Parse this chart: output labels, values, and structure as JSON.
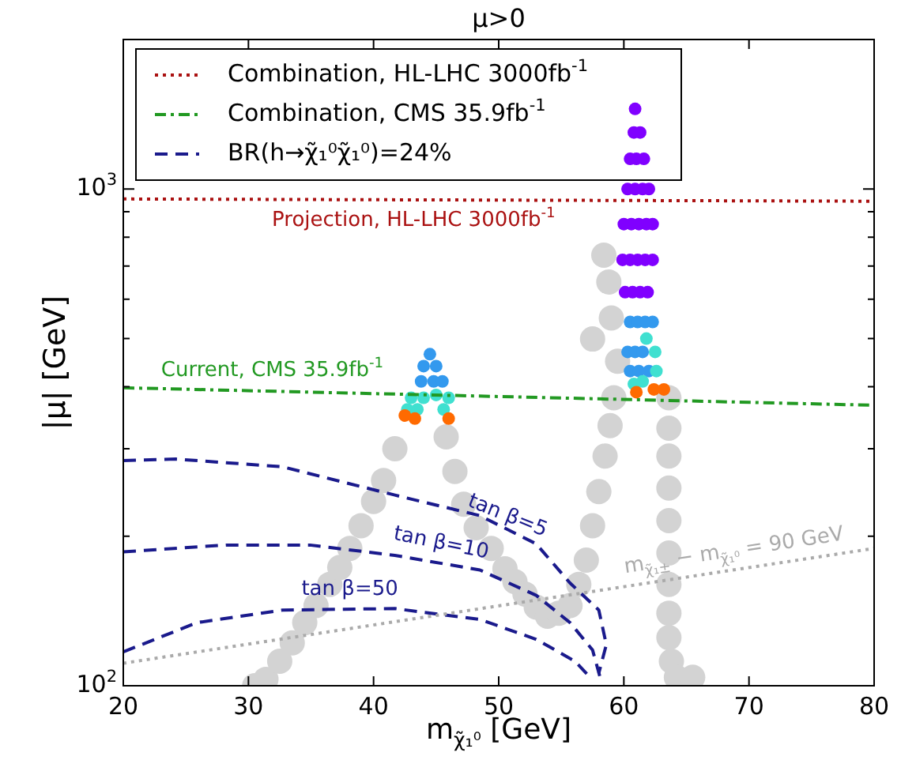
{
  "chart_data": {
    "type": "scatter",
    "title": "μ>0",
    "xlabel": "m$_{χ̃₁⁰}$ [GeV]",
    "ylabel": "|μ| [GeV]",
    "log": "y",
    "xlim": [
      20,
      80
    ],
    "ylim": [
      100,
      2000
    ],
    "xticks": [
      20,
      30,
      40,
      50,
      60,
      70,
      80
    ],
    "yticks": [
      {
        "value": 100,
        "label": "10$^{2}$"
      },
      {
        "value": 200,
        "label": null
      },
      {
        "value": 300,
        "label": null
      },
      {
        "value": 400,
        "label": null
      },
      {
        "value": 500,
        "label": null
      },
      {
        "value": 600,
        "label": null
      },
      {
        "value": 700,
        "label": null
      },
      {
        "value": 800,
        "label": null
      },
      {
        "value": 900,
        "label": null
      },
      {
        "value": 1000,
        "label": "10$^{3}$"
      }
    ],
    "grid": false,
    "legend": "top left",
    "annotations": [
      {
        "text": "Projection, HL-LHC 3000fb$^{-1}$",
        "x": 43.2,
        "y": 950
      },
      {
        "text": "Current, CMS 35.9fb$^{-1}$",
        "x": 31.9,
        "y": 392
      },
      {
        "text": "tan β=5",
        "x": 50.7,
        "y": 207
      },
      {
        "text": "tan β=10",
        "x": 45.4,
        "y": 177
      },
      {
        "text": "tan β=50",
        "x": 38.1,
        "y": 143
      },
      {
        "text": "m$_{χ̃₁±}$ − m$_{χ̃₁⁰}$ = 90 GeV",
        "x": 68.8,
        "y": 171
      }
    ],
    "series": [
      {
        "color": "#d3d3d3",
        "marker": "circle",
        "x": [
          30.5,
          31.4,
          32.5,
          33.5,
          34.5,
          35.4,
          36.5,
          37.3,
          38.1,
          39,
          40,
          40.8,
          41.7,
          45.8,
          46.5,
          47.2,
          48.2,
          49.4,
          50.5,
          51.3,
          52.1,
          53,
          53.9,
          54.8,
          55.7,
          56.4,
          57,
          57.5,
          58,
          58.5,
          58.9,
          59.2,
          59.5,
          59,
          58.8,
          58.4,
          57.5,
          63.6,
          63.6,
          63.6,
          63.6,
          63.6,
          63.6,
          63.6,
          63.6,
          63.6,
          63.8,
          64.2,
          65.5
        ],
        "values": [
          100,
          103,
          112,
          122,
          134,
          145,
          160,
          173,
          189,
          210,
          235,
          259,
          300,
          317,
          270,
          232,
          208,
          189,
          172,
          162,
          153,
          144,
          138,
          140,
          145,
          160,
          179,
          210,
          246,
          290,
          334,
          380,
          450,
          550,
          650,
          736,
          499,
          380,
          330,
          290,
          250,
          215,
          185,
          160,
          140,
          125,
          112,
          104,
          104
        ]
      },
      {
        "color": "#8000ff",
        "marker": "circle",
        "x": [
          60.9,
          60.8,
          61.3,
          60.5,
          61,
          61.6,
          60.3,
          60.9,
          61.5,
          62,
          60,
          60.6,
          61.2,
          61.8,
          62.3,
          59.9,
          60.5,
          61.1,
          61.7,
          62.3,
          60.1,
          60.7,
          61.3,
          61.9
        ],
        "values": [
          1450,
          1300,
          1300,
          1150,
          1150,
          1150,
          1000,
          1000,
          1000,
          1000,
          850,
          850,
          850,
          850,
          850,
          720,
          720,
          720,
          720,
          720,
          620,
          620,
          620,
          620
        ]
      },
      {
        "color": "#3399ee",
        "marker": "circle",
        "x": [
          60.5,
          61.1,
          61.7,
          62.3,
          60.3,
          60.9,
          61.5,
          60.5,
          61.2,
          62,
          44.5,
          44,
          45,
          43.8,
          44.8,
          45.5
        ],
        "values": [
          540,
          540,
          540,
          540,
          470,
          470,
          470,
          430,
          430,
          430,
          465,
          440,
          440,
          410,
          410,
          410
        ]
      },
      {
        "color": "#40e0d0",
        "marker": "circle",
        "x": [
          61.8,
          62.5,
          62.6,
          61.5,
          60.8,
          43,
          44,
          45,
          46,
          42.7,
          43.5,
          45.6
        ],
        "values": [
          500,
          470,
          430,
          410,
          405,
          380,
          380,
          385,
          380,
          360,
          360,
          360
        ]
      },
      {
        "color": "#ff6a00",
        "marker": "circle",
        "x": [
          62.4,
          63.2,
          61,
          42.5,
          43.3,
          46
        ],
        "values": [
          395,
          395,
          390,
          350,
          345,
          345
        ]
      },
      {
        "type": "line",
        "name": "Combination, HL-LHC 3000fb$^{-1}$",
        "color": "#aa1111",
        "line_style": "dotted",
        "marker": "none",
        "x": [
          20,
          80
        ],
        "values": [
          955,
          945
        ]
      },
      {
        "type": "line",
        "name": "Combination, CMS 35.9fb$^{-1}$",
        "color": "#229922",
        "line_style": "dashdot",
        "marker": "none",
        "x": [
          20,
          80
        ],
        "values": [
          398,
          367
        ]
      },
      {
        "type": "line",
        "name": "BR(h→χ̃₁⁰χ̃₁⁰)=24%",
        "color": "#1a1a8c",
        "line_style": "dashed",
        "marker": "none",
        "x": [
          20,
          24.2,
          32.7,
          41.7,
          48.5,
          53,
          55.7,
          58,
          58.6,
          58
        ],
        "values": [
          284,
          286,
          276,
          242,
          220,
          193,
          161,
          142,
          121,
          106
        ]
      },
      {
        "type": "line",
        "color": "#1a1a8c",
        "line_style": "dashed",
        "marker": "none",
        "x": [
          20,
          28.2,
          34.9,
          41.7,
          48.5,
          53,
          55.7,
          57.5,
          58.1
        ],
        "values": [
          186,
          192,
          192,
          183,
          171,
          152,
          134,
          118,
          104
        ]
      },
      {
        "type": "line",
        "color": "#1a1a8c",
        "line_style": "dashed",
        "marker": "none",
        "x": [
          20,
          25.9,
          32.7,
          41.7,
          48.5,
          53,
          56.1,
          57.3
        ],
        "values": [
          117,
          134,
          142,
          143,
          136,
          124,
          112,
          104
        ]
      },
      {
        "type": "line",
        "color": "#aaaaaa",
        "line_style": "dotted",
        "marker": "none",
        "x": [
          20,
          80
        ],
        "values": [
          111,
          189
        ]
      }
    ]
  }
}
